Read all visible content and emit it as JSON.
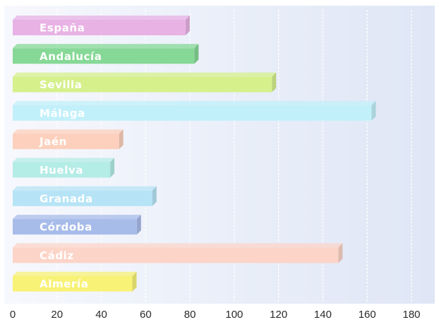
{
  "chart_data": {
    "type": "bar",
    "orientation": "horizontal",
    "categories": [
      "España",
      "Andalucía",
      "Sevilla",
      "Málaga",
      "Jaén",
      "Huelva",
      "Granada",
      "Córdoba",
      "Cádiz",
      "Almería"
    ],
    "values": [
      78,
      82,
      117,
      162,
      48,
      44,
      63,
      56,
      147,
      54
    ],
    "colors": [
      "#e8b2e4",
      "#86d896",
      "#d6f08c",
      "#c2f0fa",
      "#fcd0bc",
      "#b4ece6",
      "#b6e4f6",
      "#a8bcea",
      "#fcd4c8",
      "#f8f276"
    ],
    "xlim": [
      0,
      180
    ],
    "xticks": [
      "0",
      "20",
      "40",
      "60",
      "80",
      "100",
      "120",
      "140",
      "160",
      "180"
    ],
    "grid": true,
    "title": "",
    "xlabel": "",
    "ylabel": ""
  }
}
